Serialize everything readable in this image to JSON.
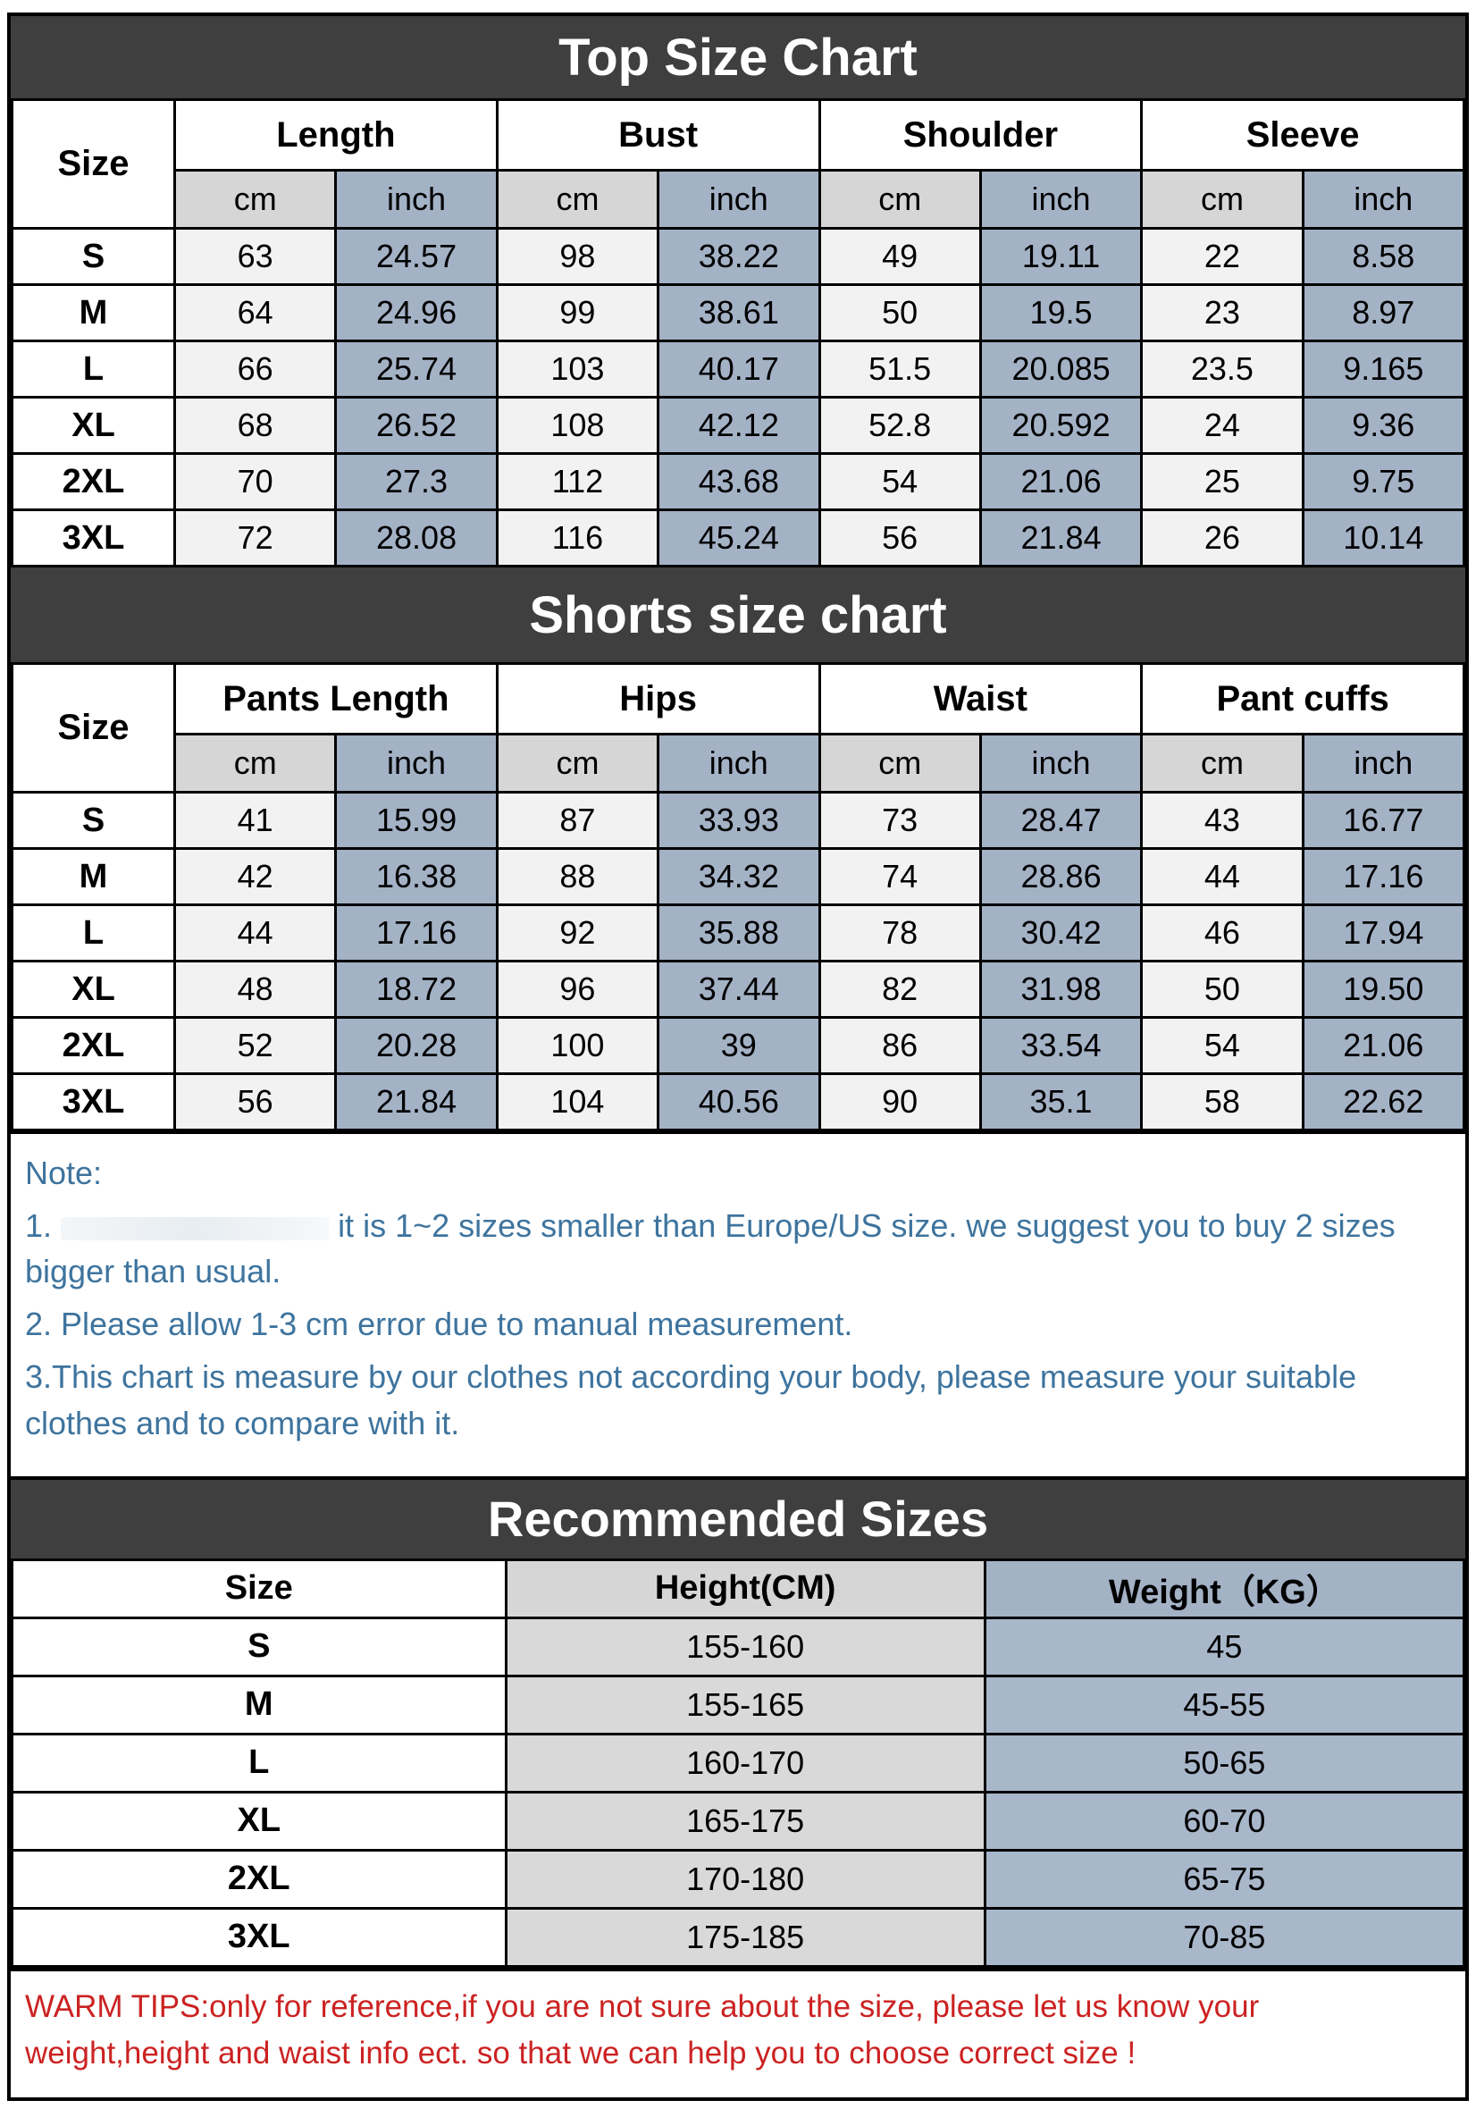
{
  "units": {
    "cm": "cm",
    "inch": "inch"
  },
  "colors": {
    "band_background": "#3f3f3f",
    "cm_header_background": "#d6d6d6",
    "inch_background": "#a4b2c6",
    "cm_data_background": "#f2f2f2",
    "note_text": "#3e749e",
    "warm_tips_text": "#cc2222"
  },
  "top_chart": {
    "title": "Top Size Chart",
    "size_header": "Size",
    "groups": {
      "g0": "Length",
      "g1": "Bust",
      "g2": "Shoulder",
      "g3": "Sleeve"
    },
    "rows": [
      {
        "size": "S",
        "values": [
          "63",
          "24.57",
          "98",
          "38.22",
          "49",
          "19.11",
          "22",
          "8.58"
        ]
      },
      {
        "size": "M",
        "values": [
          "64",
          "24.96",
          "99",
          "38.61",
          "50",
          "19.5",
          "23",
          "8.97"
        ]
      },
      {
        "size": "L",
        "values": [
          "66",
          "25.74",
          "103",
          "40.17",
          "51.5",
          "20.085",
          "23.5",
          "9.165"
        ]
      },
      {
        "size": "XL",
        "values": [
          "68",
          "26.52",
          "108",
          "42.12",
          "52.8",
          "20.592",
          "24",
          "9.36"
        ]
      },
      {
        "size": "2XL",
        "values": [
          "70",
          "27.3",
          "112",
          "43.68",
          "54",
          "21.06",
          "25",
          "9.75"
        ]
      },
      {
        "size": "3XL",
        "values": [
          "72",
          "28.08",
          "116",
          "45.24",
          "56",
          "21.84",
          "26",
          "10.14"
        ]
      }
    ]
  },
  "shorts_chart": {
    "title": "Shorts size chart",
    "size_header": "Size",
    "groups": {
      "g0": "Pants Length",
      "g1": "Hips",
      "g2": "Waist",
      "g3": "Pant cuffs"
    },
    "rows": [
      {
        "size": "S",
        "values": [
          "41",
          "15.99",
          "87",
          "33.93",
          "73",
          "28.47",
          "43",
          "16.77"
        ]
      },
      {
        "size": "M",
        "values": [
          "42",
          "16.38",
          "88",
          "34.32",
          "74",
          "28.86",
          "44",
          "17.16"
        ]
      },
      {
        "size": "L",
        "values": [
          "44",
          "17.16",
          "92",
          "35.88",
          "78",
          "30.42",
          "46",
          "17.94"
        ]
      },
      {
        "size": "XL",
        "values": [
          "48",
          "18.72",
          "96",
          "37.44",
          "82",
          "31.98",
          "50",
          "19.50"
        ]
      },
      {
        "size": "2XL",
        "values": [
          "52",
          "20.28",
          "100",
          "39",
          "86",
          "33.54",
          "54",
          "21.06"
        ]
      },
      {
        "size": "3XL",
        "values": [
          "56",
          "21.84",
          "104",
          "40.56",
          "90",
          "35.1",
          "58",
          "22.62"
        ]
      }
    ]
  },
  "note": {
    "heading": "Note:",
    "line1_prefix": "1.",
    "line1_text": "it is 1~2 sizes smaller than Europe/US size. we suggest you to buy 2 sizes bigger than usual.",
    "line2": "2. Please allow 1-3 cm error due to manual measurement.",
    "line3": "3.This chart is measure by our clothes not according your body, please measure your suitable clothes and to compare with it."
  },
  "recommended": {
    "title": "Recommended Sizes",
    "headers": {
      "size": "Size",
      "height": "Height(CM)",
      "weight": "Weight（KG）"
    },
    "rows": [
      {
        "size": "S",
        "height": "155-160",
        "weight": "45"
      },
      {
        "size": "M",
        "height": "155-165",
        "weight": "45-55"
      },
      {
        "size": "L",
        "height": "160-170",
        "weight": "50-65"
      },
      {
        "size": "XL",
        "height": "165-175",
        "weight": "60-70"
      },
      {
        "size": "2XL",
        "height": "170-180",
        "weight": "65-75"
      },
      {
        "size": "3XL",
        "height": "175-185",
        "weight": "70-85"
      }
    ]
  },
  "warm_tips": "WARM TIPS:only for reference,if you are not sure about the size, please let us know your weight,height and waist info ect. so that we can help you to choose correct size !"
}
